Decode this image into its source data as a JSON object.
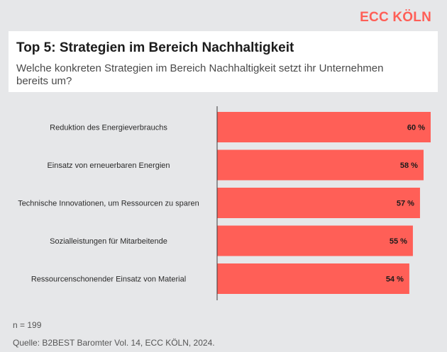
{
  "brand": "ECC KÖLN",
  "colors": {
    "background": "#e6e7e9",
    "bar": "#ff5f57",
    "brand": "#ff5f57",
    "axis": "#3a3a3a"
  },
  "chart_data": {
    "type": "bar",
    "orientation": "horizontal",
    "title": "Top 5: Strategien im Bereich Nachhaltigkeit",
    "subtitle": "Welche konkreten Strategien im Bereich Nachhaltigkeit setzt ihr Unternehmen bereits um?",
    "categories": [
      "Reduktion des Energieverbrauchs",
      "Einsatz von erneuerbaren Energien",
      "Technische Innovationen, um Ressourcen zu sparen",
      "Sozialleistungen für Mitarbeitende",
      "Ressourcenschonender Einsatz von Material"
    ],
    "values": [
      60,
      58,
      57,
      55,
      54
    ],
    "value_labels": [
      "60 %",
      "58 %",
      "57 %",
      "55 %",
      "54 %"
    ],
    "unit": "%",
    "xlim": [
      0,
      60
    ],
    "grid": false,
    "legend": "none"
  },
  "notes": {
    "sample": "n = 199",
    "source": "Quelle: B2BEST Baromter Vol. 14, ECC KÖLN, 2024."
  }
}
